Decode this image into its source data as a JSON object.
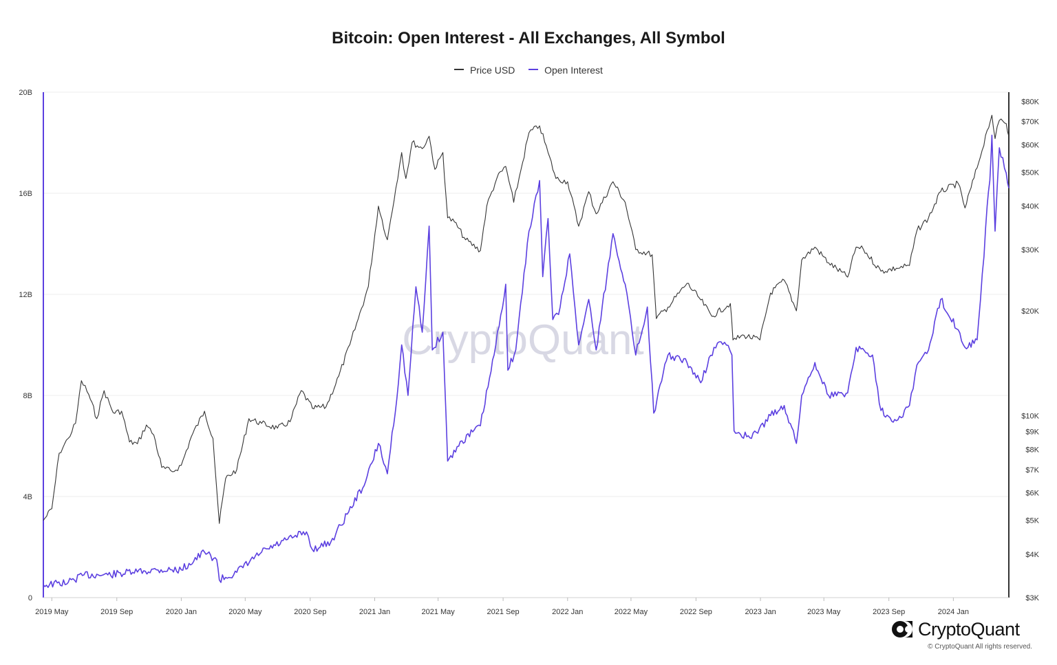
{
  "title": "Bitcoin: Open Interest - All Exchanges, All Symbol",
  "legend": [
    {
      "label": "Price USD",
      "color": "#333333"
    },
    {
      "label": "Open Interest",
      "color": "#5b3fe0"
    }
  ],
  "watermark": "CryptoQuant",
  "brand": {
    "name": "CryptoQuant",
    "rights": "© CryptoQuant All rights reserved."
  },
  "chart_data": {
    "type": "line",
    "title": "Bitcoin: Open Interest - All Exchanges, All Symbol",
    "xlabel": "",
    "x_ticks": [
      "2019 May",
      "2019 Sep",
      "2020 Jan",
      "2020 May",
      "2020 Sep",
      "2021 Jan",
      "2021 May",
      "2021 Sep",
      "2022 Jan",
      "2022 May",
      "2022 Sep",
      "2023 Jan",
      "2023 May",
      "2023 Sep",
      "2024 Jan"
    ],
    "x_range": [
      "2019-04-15",
      "2024-04-15"
    ],
    "left_axis": {
      "ylim": [
        0,
        20000000000
      ],
      "ticks": [
        "0",
        "4B",
        "8B",
        "12B",
        "16B",
        "20B"
      ],
      "series": "Open Interest"
    },
    "right_axis": {
      "scale": "log",
      "ylim": [
        3000,
        85000
      ],
      "ticks": [
        "$3K",
        "$4K",
        "$5K",
        "$6K",
        "$7K",
        "$8K",
        "$9K",
        "$10K",
        "$20K",
        "$30K",
        "$40K",
        "$50K",
        "$60K",
        "$70K",
        "$80K"
      ],
      "tick_values": [
        3000,
        4000,
        5000,
        6000,
        7000,
        8000,
        9000,
        10000,
        20000,
        30000,
        40000,
        50000,
        60000,
        70000,
        80000
      ],
      "series": "Price USD"
    },
    "grid": true,
    "legend_position": "top",
    "series": [
      {
        "name": "Price USD",
        "axis": "right",
        "color": "#333333",
        "points": [
          [
            "2019-04-15",
            5000
          ],
          [
            "2019-05-01",
            5400
          ],
          [
            "2019-05-15",
            7800
          ],
          [
            "2019-06-01",
            8600
          ],
          [
            "2019-06-15",
            9500
          ],
          [
            "2019-06-26",
            12600
          ],
          [
            "2019-07-10",
            11500
          ],
          [
            "2019-07-25",
            9800
          ],
          [
            "2019-08-08",
            11800
          ],
          [
            "2019-08-25",
            10200
          ],
          [
            "2019-09-10",
            10300
          ],
          [
            "2019-09-25",
            8400
          ],
          [
            "2019-10-10",
            8300
          ],
          [
            "2019-10-27",
            9400
          ],
          [
            "2019-11-10",
            8800
          ],
          [
            "2019-11-25",
            7100
          ],
          [
            "2019-12-15",
            6900
          ],
          [
            "2020-01-01",
            7200
          ],
          [
            "2020-01-20",
            8700
          ],
          [
            "2020-02-14",
            10300
          ],
          [
            "2020-03-01",
            8600
          ],
          [
            "2020-03-13",
            4900
          ],
          [
            "2020-03-25",
            6600
          ],
          [
            "2020-04-15",
            7000
          ],
          [
            "2020-05-08",
            9800
          ],
          [
            "2020-06-01",
            9500
          ],
          [
            "2020-07-01",
            9200
          ],
          [
            "2020-07-25",
            9600
          ],
          [
            "2020-08-15",
            11800
          ],
          [
            "2020-09-05",
            10500
          ],
          [
            "2020-10-01",
            10600
          ],
          [
            "2020-10-25",
            13000
          ],
          [
            "2020-11-15",
            16000
          ],
          [
            "2020-12-01",
            19000
          ],
          [
            "2020-12-20",
            23500
          ],
          [
            "2021-01-08",
            40000
          ],
          [
            "2021-01-25",
            32000
          ],
          [
            "2021-02-10",
            45000
          ],
          [
            "2021-02-21",
            57000
          ],
          [
            "2021-03-01",
            48000
          ],
          [
            "2021-03-13",
            61000
          ],
          [
            "2021-04-01",
            58500
          ],
          [
            "2021-04-14",
            63500
          ],
          [
            "2021-04-25",
            51000
          ],
          [
            "2021-05-10",
            57000
          ],
          [
            "2021-05-19",
            37000
          ],
          [
            "2021-06-01",
            36000
          ],
          [
            "2021-06-22",
            32000
          ],
          [
            "2021-07-20",
            29800
          ],
          [
            "2021-08-01",
            40000
          ],
          [
            "2021-08-20",
            48000
          ],
          [
            "2021-09-06",
            52000
          ],
          [
            "2021-09-21",
            41000
          ],
          [
            "2021-10-05",
            51000
          ],
          [
            "2021-10-20",
            65000
          ],
          [
            "2021-11-09",
            68000
          ],
          [
            "2021-11-25",
            57000
          ],
          [
            "2021-12-10",
            48000
          ],
          [
            "2022-01-01",
            47000
          ],
          [
            "2022-01-22",
            35000
          ],
          [
            "2022-02-10",
            44000
          ],
          [
            "2022-02-24",
            38000
          ],
          [
            "2022-03-28",
            47000
          ],
          [
            "2022-04-20",
            41000
          ],
          [
            "2022-05-10",
            30000
          ],
          [
            "2022-06-10",
            29000
          ],
          [
            "2022-06-18",
            19000
          ],
          [
            "2022-07-10",
            20500
          ],
          [
            "2022-08-15",
            24000
          ],
          [
            "2022-09-10",
            21500
          ],
          [
            "2022-10-01",
            19300
          ],
          [
            "2022-11-05",
            21000
          ],
          [
            "2022-11-10",
            16500
          ],
          [
            "2022-12-01",
            17000
          ],
          [
            "2022-12-31",
            16500
          ],
          [
            "2023-01-20",
            22500
          ],
          [
            "2023-02-15",
            24500
          ],
          [
            "2023-03-10",
            20000
          ],
          [
            "2023-03-20",
            28000
          ],
          [
            "2023-04-14",
            30500
          ],
          [
            "2023-05-10",
            27500
          ],
          [
            "2023-06-15",
            25000
          ],
          [
            "2023-07-01",
            30500
          ],
          [
            "2023-07-15",
            30000
          ],
          [
            "2023-08-17",
            26000
          ],
          [
            "2023-09-15",
            26500
          ],
          [
            "2023-10-10",
            27000
          ],
          [
            "2023-10-24",
            34000
          ],
          [
            "2023-11-15",
            37000
          ],
          [
            "2023-12-08",
            44000
          ],
          [
            "2024-01-10",
            46500
          ],
          [
            "2024-01-23",
            39500
          ],
          [
            "2024-02-15",
            51500
          ],
          [
            "2024-03-05",
            66000
          ],
          [
            "2024-03-14",
            73000
          ],
          [
            "2024-03-20",
            62500
          ],
          [
            "2024-03-28",
            70500
          ],
          [
            "2024-04-10",
            69000
          ],
          [
            "2024-04-15",
            63500
          ]
        ]
      },
      {
        "name": "Open Interest",
        "axis": "left",
        "color": "#5b3fe0",
        "points": [
          [
            "2019-04-15",
            500000000
          ],
          [
            "2019-06-01",
            600000000
          ],
          [
            "2019-07-01",
            900000000
          ],
          [
            "2019-08-15",
            900000000
          ],
          [
            "2019-10-01",
            1000000000
          ],
          [
            "2019-11-15",
            1100000000
          ],
          [
            "2020-01-01",
            1100000000
          ],
          [
            "2020-02-14",
            1800000000
          ],
          [
            "2020-03-08",
            1500000000
          ],
          [
            "2020-03-13",
            700000000
          ],
          [
            "2020-04-15",
            1000000000
          ],
          [
            "2020-06-01",
            1800000000
          ],
          [
            "2020-08-01",
            2400000000
          ],
          [
            "2020-08-25",
            2600000000
          ],
          [
            "2020-09-05",
            1900000000
          ],
          [
            "2020-10-10",
            2200000000
          ],
          [
            "2020-11-10",
            3300000000
          ],
          [
            "2020-12-15",
            4600000000
          ],
          [
            "2021-01-08",
            6100000000
          ],
          [
            "2021-01-25",
            4900000000
          ],
          [
            "2021-02-15",
            8500000000
          ],
          [
            "2021-02-21",
            10000000000
          ],
          [
            "2021-03-05",
            8000000000
          ],
          [
            "2021-03-20",
            12300000000
          ],
          [
            "2021-04-01",
            10500000000
          ],
          [
            "2021-04-14",
            14700000000
          ],
          [
            "2021-04-20",
            9800000000
          ],
          [
            "2021-05-10",
            10500000000
          ],
          [
            "2021-05-19",
            5400000000
          ],
          [
            "2021-06-15",
            6200000000
          ],
          [
            "2021-07-20",
            6800000000
          ],
          [
            "2021-08-15",
            9600000000
          ],
          [
            "2021-09-06",
            12400000000
          ],
          [
            "2021-09-10",
            9000000000
          ],
          [
            "2021-09-25",
            9800000000
          ],
          [
            "2021-10-20",
            14500000000
          ],
          [
            "2021-11-09",
            16500000000
          ],
          [
            "2021-11-15",
            12700000000
          ],
          [
            "2021-11-25",
            15000000000
          ],
          [
            "2021-12-04",
            11000000000
          ],
          [
            "2021-12-15",
            11200000000
          ],
          [
            "2022-01-05",
            13600000000
          ],
          [
            "2022-01-22",
            10000000000
          ],
          [
            "2022-02-10",
            11800000000
          ],
          [
            "2022-02-24",
            9800000000
          ],
          [
            "2022-03-28",
            14400000000
          ],
          [
            "2022-04-20",
            12400000000
          ],
          [
            "2022-05-10",
            9600000000
          ],
          [
            "2022-06-01",
            11500000000
          ],
          [
            "2022-06-13",
            7300000000
          ],
          [
            "2022-07-10",
            9600000000
          ],
          [
            "2022-08-15",
            9300000000
          ],
          [
            "2022-09-10",
            8500000000
          ],
          [
            "2022-10-05",
            9900000000
          ],
          [
            "2022-10-25",
            10100000000
          ],
          [
            "2022-11-08",
            9600000000
          ],
          [
            "2022-11-12",
            6600000000
          ],
          [
            "2022-12-15",
            6300000000
          ],
          [
            "2023-01-20",
            7200000000
          ],
          [
            "2023-02-15",
            7600000000
          ],
          [
            "2023-03-10",
            6100000000
          ],
          [
            "2023-03-20",
            8000000000
          ],
          [
            "2023-04-14",
            9300000000
          ],
          [
            "2023-05-10",
            8000000000
          ],
          [
            "2023-06-15",
            8100000000
          ],
          [
            "2023-07-01",
            9900000000
          ],
          [
            "2023-08-01",
            9600000000
          ],
          [
            "2023-08-17",
            7400000000
          ],
          [
            "2023-09-15",
            7000000000
          ],
          [
            "2023-10-10",
            7600000000
          ],
          [
            "2023-10-24",
            9200000000
          ],
          [
            "2023-11-15",
            9800000000
          ],
          [
            "2023-12-08",
            11800000000
          ],
          [
            "2024-01-10",
            10600000000
          ],
          [
            "2024-01-23",
            9900000000
          ],
          [
            "2024-02-15",
            10200000000
          ],
          [
            "2024-02-28",
            13500000000
          ],
          [
            "2024-03-05",
            15500000000
          ],
          [
            "2024-03-10",
            16500000000
          ],
          [
            "2024-03-14",
            18300000000
          ],
          [
            "2024-03-20",
            14500000000
          ],
          [
            "2024-03-28",
            17800000000
          ],
          [
            "2024-04-10",
            16800000000
          ],
          [
            "2024-04-15",
            16200000000
          ]
        ]
      }
    ]
  }
}
